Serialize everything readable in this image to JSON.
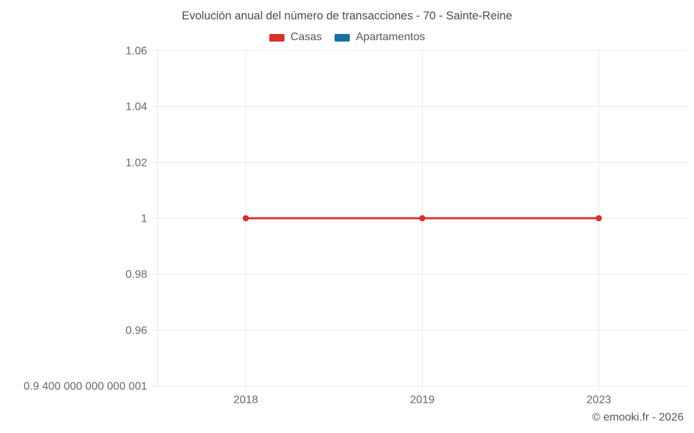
{
  "chart": {
    "title": "Evolución anual del número de transacciones - 70 - Sainte-Reine",
    "legend": [
      {
        "label": "Casas",
        "color": "#d5312d"
      },
      {
        "label": "Apartamentos",
        "color": "#1a6fa5"
      }
    ],
    "footer": "© emooki.fr - 2026"
  },
  "chart_data": {
    "type": "line",
    "title": "Evolución anual del número de transacciones - 70 - Sainte-Reine",
    "categories": [
      "2018",
      "2019",
      "2023"
    ],
    "series": [
      {
        "name": "Casas",
        "color": "#d5312d",
        "values": [
          1,
          1,
          1
        ]
      },
      {
        "name": "Apartamentos",
        "color": "#1a6fa5",
        "values": []
      }
    ],
    "xlabel": "",
    "ylabel": "",
    "ylim": [
      0.94,
      1.06
    ],
    "y_ticks": [
      {
        "value": 1.06,
        "label": "1.06"
      },
      {
        "value": 1.04,
        "label": "1.04"
      },
      {
        "value": 1.02,
        "label": "1.02"
      },
      {
        "value": 1.0,
        "label": "1"
      },
      {
        "value": 0.98,
        "label": "0.98"
      },
      {
        "value": 0.96,
        "label": "0.96"
      },
      {
        "value": 0.94,
        "label": "0.9 400 000 000 000 001"
      }
    ],
    "grid": true,
    "legend_position": "top",
    "gridline_color": "#e7e7e7",
    "tick_color": "#66696e"
  }
}
